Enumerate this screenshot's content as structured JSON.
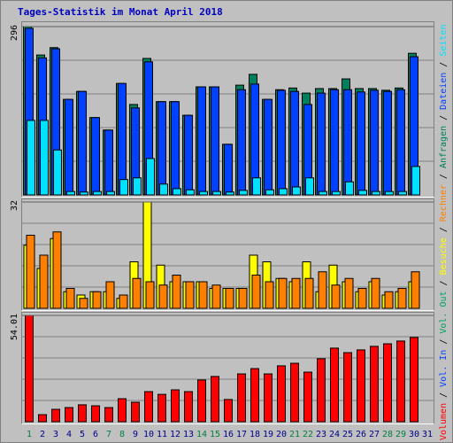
{
  "title": "Tages-Statistik im Monat April 2018",
  "legend_separator": "/",
  "chart_data": [
    {
      "type": "bar",
      "ylim": [
        0,
        296
      ],
      "yticks": [
        296
      ],
      "series": [
        {
          "name": "Anfragen",
          "color": "#00805c",
          "values": [
            296,
            246,
            259,
            168,
            182,
            136,
            114,
            196,
            159,
            240,
            164,
            164,
            140,
            190,
            190,
            89,
            193,
            212,
            168,
            185,
            188,
            179,
            187,
            187,
            204,
            187,
            187,
            184,
            188,
            249,
            null
          ]
        },
        {
          "name": "Dateien",
          "color": "#0040ff",
          "values": [
            293,
            241,
            257,
            168,
            182,
            136,
            114,
            196,
            153,
            234,
            164,
            164,
            140,
            190,
            190,
            89,
            185,
            195,
            168,
            184,
            182,
            159,
            179,
            185,
            185,
            181,
            184,
            182,
            185,
            243,
            null
          ]
        },
        {
          "name": "Seiten",
          "color": "#00e0ff",
          "values": [
            131,
            131,
            79,
            6,
            5,
            6,
            6,
            27,
            30,
            64,
            19,
            11,
            9,
            6,
            6,
            5,
            8,
            30,
            9,
            11,
            14,
            30,
            6,
            6,
            23,
            8,
            6,
            6,
            6,
            50,
            null
          ]
        }
      ]
    },
    {
      "type": "bar",
      "ylim": [
        0,
        32
      ],
      "yticks": [
        32
      ],
      "series": [
        {
          "name": "Besuche",
          "color": "#ffff00",
          "values": [
            19,
            12,
            21,
            5,
            4,
            5,
            5,
            3,
            14,
            32,
            13,
            8,
            8,
            8,
            6,
            6,
            6,
            16,
            14,
            9,
            8,
            14,
            5,
            13,
            8,
            5,
            8,
            4,
            5,
            8,
            null
          ]
        },
        {
          "name": "Rechner",
          "color": "#ff8000",
          "values": [
            22,
            16,
            23,
            6,
            3,
            5,
            8,
            4,
            9,
            8,
            7,
            10,
            8,
            8,
            7,
            6,
            6,
            10,
            8,
            9,
            9,
            9,
            11,
            7,
            9,
            6,
            9,
            5,
            6,
            11,
            null
          ]
        }
      ]
    },
    {
      "type": "bar",
      "ylim": [
        0,
        54.01
      ],
      "yticks": [
        54.01
      ],
      "categories": [
        "1",
        "2",
        "3",
        "4",
        "5",
        "6",
        "7",
        "8",
        "9",
        "10",
        "11",
        "12",
        "13",
        "14",
        "15",
        "16",
        "17",
        "18",
        "19",
        "20",
        "21",
        "22",
        "23",
        "24",
        "25",
        "26",
        "27",
        "28",
        "29",
        "30",
        "31"
      ],
      "category_colors": [
        "#008040",
        "#00008b",
        "#00008b",
        "#00008b",
        "#00008b",
        "#00008b",
        "#008040",
        "#008040",
        "#00008b",
        "#00008b",
        "#00008b",
        "#00008b",
        "#00008b",
        "#008040",
        "#008040",
        "#00008b",
        "#00008b",
        "#00008b",
        "#00008b",
        "#00008b",
        "#008040",
        "#008040",
        "#00008b",
        "#00008b",
        "#00008b",
        "#00008b",
        "#00008b",
        "#008040",
        "#008040",
        "#00008b",
        "#00008b"
      ],
      "series": [
        {
          "name": "Volumen",
          "color": "#ff0000",
          "values": [
            54.01,
            3.6,
            6.3,
            7.2,
            8.6,
            8.1,
            7.2,
            11.7,
            9.9,
            15.3,
            13.9,
            16.2,
            15.3,
            21.2,
            23.0,
            11.3,
            24.3,
            27.0,
            24.3,
            28.4,
            29.7,
            25.2,
            32.0,
            37.4,
            35.1,
            36.5,
            38.3,
            39.6,
            41.0,
            42.8,
            null
          ]
        },
        {
          "name": "Vol. In",
          "color": "#0040ff"
        },
        {
          "name": "Vol. Out",
          "color": "#00a060"
        }
      ]
    }
  ]
}
